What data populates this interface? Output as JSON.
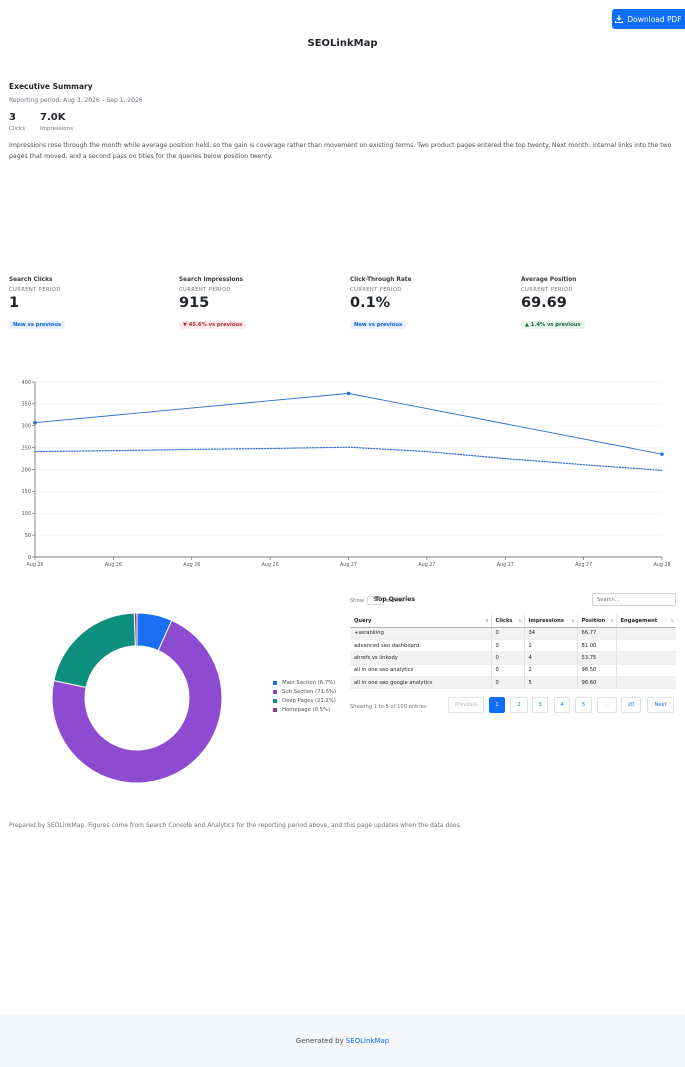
{
  "toolbar": {
    "download_label": "Download PDF",
    "download_icon": "download-icon"
  },
  "brand": {
    "title": "SEOLinkMap"
  },
  "summary": {
    "title": "Executive Summary",
    "period": "Reporting period: Aug 3, 2026 – Sep 1, 2026",
    "stats": [
      {
        "value": "3",
        "label": "Clicks"
      },
      {
        "value": "7.0K",
        "label": "Impressions"
      }
    ],
    "text": "Impressions rose through the month while average position held, so the gain is coverage rather than movement on existing terms. Two product pages entered the top twenty. Next month: internal links into the two pages that moved, and a second pass on titles for the queries below position twenty."
  },
  "kpis": [
    {
      "title": "Search Clicks",
      "sub": "CURRENT PERIOD",
      "value": "1",
      "badge": "New vs previous",
      "badge_type": "info"
    },
    {
      "title": "Search Impressions",
      "sub": "CURRENT PERIOD",
      "value": "915",
      "badge": "▼ 45.6% vs previous",
      "badge_type": "down"
    },
    {
      "title": "Click-Through Rate",
      "sub": "CURRENT PERIOD",
      "value": "0.1%",
      "badge": "New vs previous",
      "badge_type": "info"
    },
    {
      "title": "Average Position",
      "sub": "CURRENT PERIOD",
      "value": "69.69",
      "badge": "▲ 1.4% vs previous",
      "badge_type": "up"
    }
  ],
  "chart_data": [
    {
      "type": "line",
      "categories": [
        "Aug 26",
        "Aug 26",
        "Aug 26",
        "Aug 26",
        "Aug 27",
        "Aug 27",
        "Aug 27",
        "Aug 27",
        "Aug 28"
      ],
      "x_positions": [
        0,
        1,
        2,
        3,
        4,
        5,
        6,
        7,
        8
      ],
      "ylim": [
        0,
        400
      ],
      "yticks": [
        0,
        50,
        100,
        150,
        200,
        250,
        300,
        350,
        400
      ],
      "grid": true,
      "series": [
        {
          "style": "solid",
          "color": "#2c6fd1",
          "x": [
            0,
            4,
            8
          ],
          "values": [
            307,
            374,
            235
          ]
        },
        {
          "style": "dotted",
          "color": "#2c6fd1",
          "x": [
            0,
            1,
            2,
            3,
            4,
            5,
            6,
            7,
            8
          ],
          "values": [
            241,
            243,
            246,
            248,
            251,
            241,
            225,
            211,
            198
          ]
        }
      ]
    },
    {
      "type": "pie",
      "labels": [
        "Main Section (6.7%)",
        "Sub Section (71.5%)",
        "Deep Pages (21.2%)",
        "Homepage (0.5%)"
      ],
      "values": [
        6.7,
        71.5,
        21.2,
        0.5
      ],
      "colors": [
        "#1a6ff5",
        "#8c4bd1",
        "#0d8f80",
        "#8a3a78"
      ],
      "legend": "right"
    }
  ],
  "table": {
    "show_label": "Show",
    "entries_label": "entries",
    "page_size": "5",
    "title": "Top Queries",
    "search_placeholder": "Search...",
    "columns": [
      "Query",
      "Clicks",
      "Impressions",
      "Position",
      "Engagement"
    ],
    "rows": [
      [
        "+seranking",
        "0",
        "34",
        "66.77",
        ""
      ],
      [
        "advanced seo dashboard",
        "0",
        "2",
        "81.00",
        ""
      ],
      [
        "ahrefs vs linkody",
        "0",
        "4",
        "53.75",
        ""
      ],
      [
        "all in one seo analytics",
        "0",
        "2",
        "98.50",
        ""
      ],
      [
        "all in one seo google analytics",
        "0",
        "5",
        "96.60",
        ""
      ]
    ],
    "info": "Showing 1 to 5 of 100 entries",
    "pagination": [
      "Previous",
      "1",
      "2",
      "3",
      "4",
      "5",
      "…",
      "20",
      "Next"
    ]
  },
  "prepared_text": "Prepared by SEOLinkMap. Figures come from Search Console and Analytics for the reporting period above, and this page updates when the data does.",
  "footer": {
    "prefix": "Generated by",
    "link": "SEOLinkMap"
  }
}
